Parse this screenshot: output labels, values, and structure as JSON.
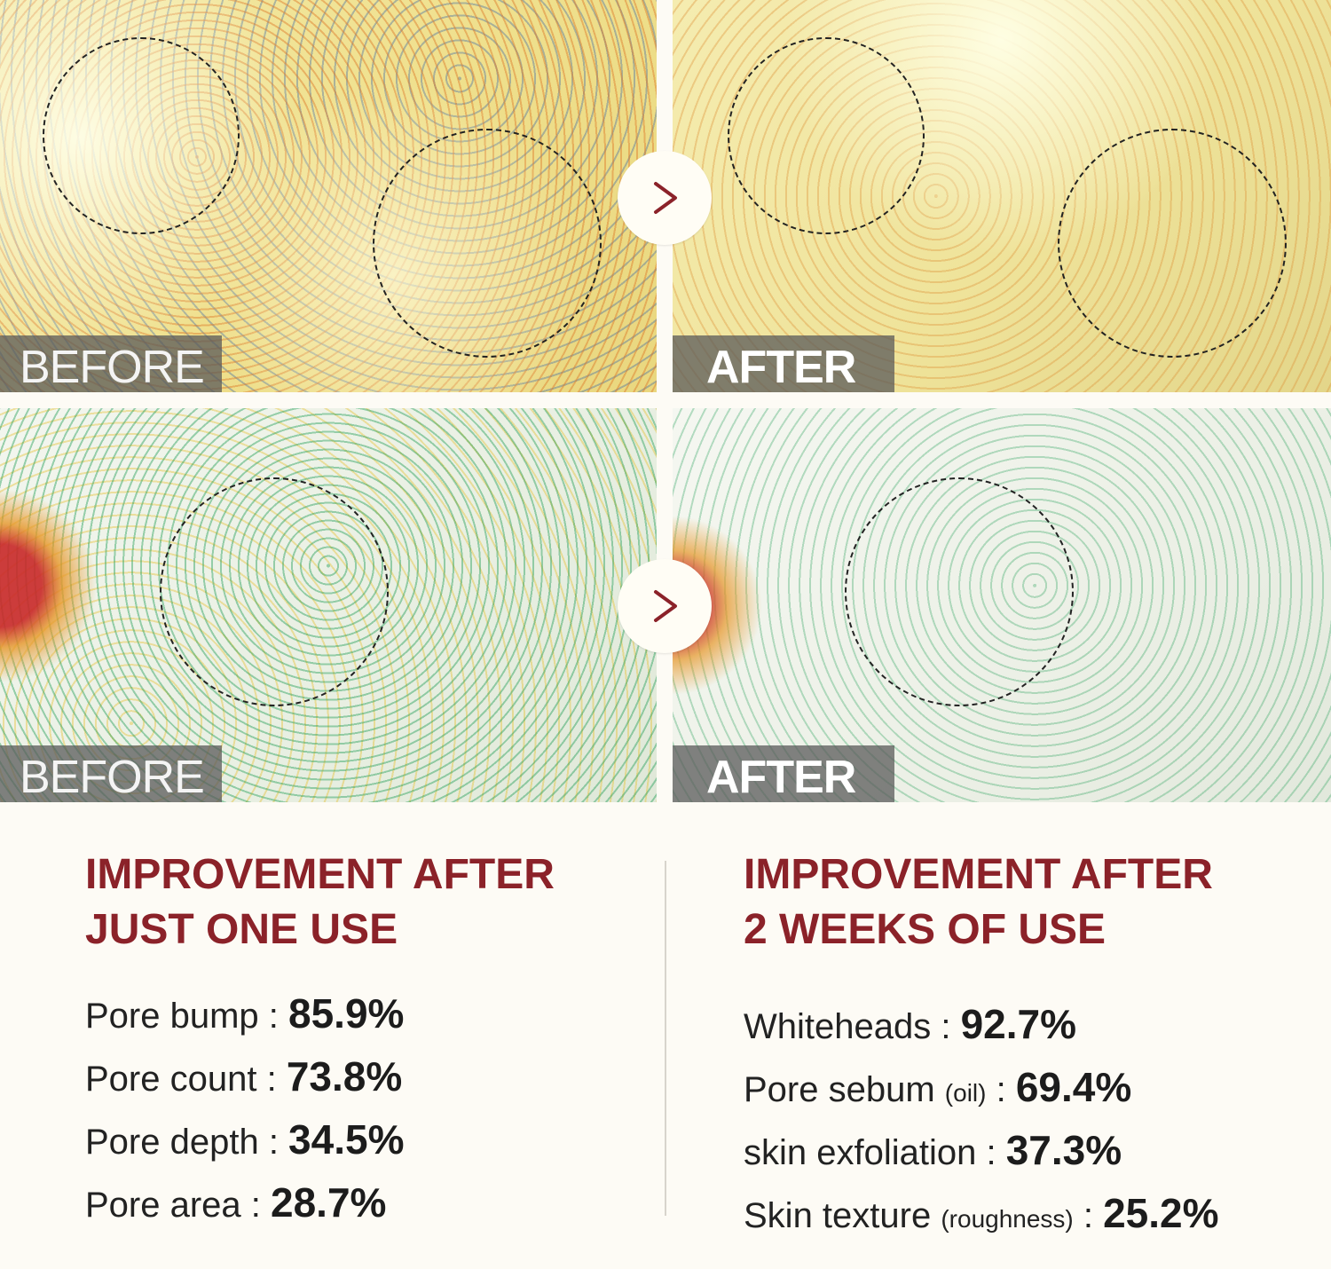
{
  "panels": {
    "top_left": {
      "label": "BEFORE"
    },
    "top_right": {
      "label": "AFTER"
    },
    "bottom_left": {
      "label": "BEFORE"
    },
    "bottom_right": {
      "label": "AFTER"
    }
  },
  "left_col": {
    "heading_line1": "IMPROVEMENT AFTER",
    "heading_line2": "JUST ONE USE",
    "stats": [
      {
        "label": "Pore bump",
        "note": "",
        "value": "85.9%"
      },
      {
        "label": "Pore count",
        "note": "",
        "value": "73.8%"
      },
      {
        "label": "Pore depth",
        "note": "",
        "value": "34.5%"
      },
      {
        "label": "Pore area",
        "note": "",
        "value": "28.7%"
      }
    ]
  },
  "right_col": {
    "heading_line1": "IMPROVEMENT AFTER",
    "heading_line2": "2 WEEKS OF USE",
    "stats": [
      {
        "label": "Whiteheads",
        "note": "",
        "value": "92.7%"
      },
      {
        "label": "Pore sebum",
        "note": "(oil)",
        "value": "69.4%"
      },
      {
        "label": "skin exfoliation",
        "note": "",
        "value": "37.3%"
      },
      {
        "label": "Skin texture",
        "note": "(roughness)",
        "value": "25.2%"
      }
    ]
  },
  "colors": {
    "heading": "#8b2229",
    "arrow": "#8b2229"
  },
  "icons": {
    "arrow": "chevron-right-icon"
  }
}
